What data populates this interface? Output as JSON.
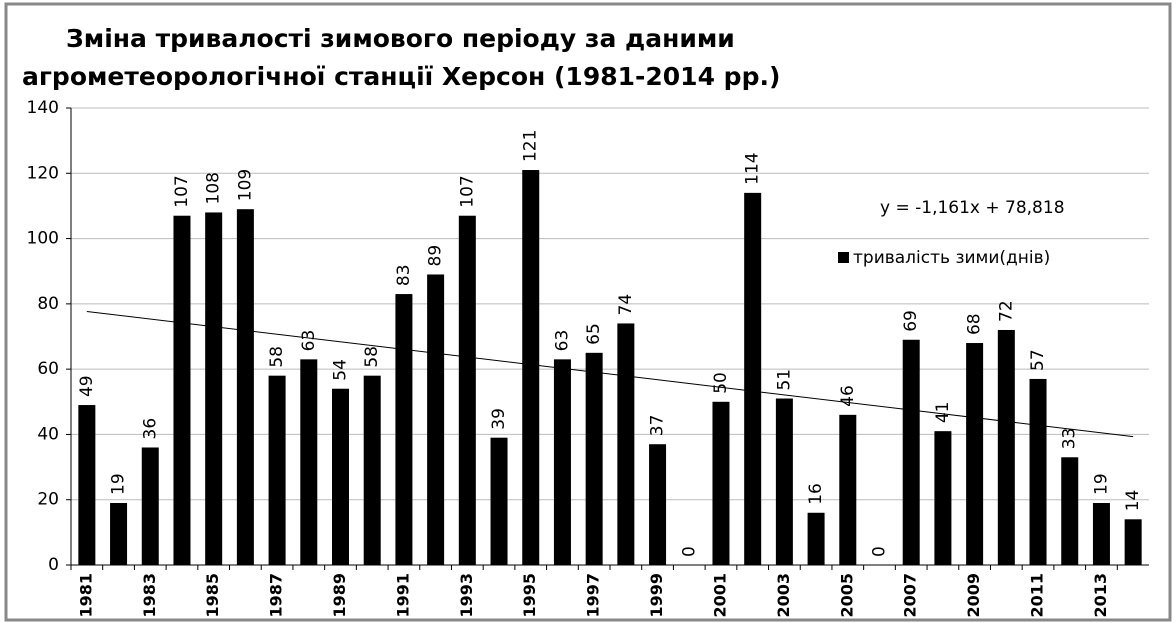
{
  "chart_data": {
    "type": "bar",
    "title": [
      "Зміна тривалості зимового періоду за даними",
      "агрометеорологічної станції Херсон (1981-2014 рр.)"
    ],
    "categories": [
      "1981",
      null,
      "1983",
      null,
      "1985",
      null,
      "1987",
      null,
      "1989",
      null,
      "1991",
      null,
      "1993",
      null,
      "1995",
      null,
      "1997",
      null,
      "1999",
      null,
      "2001",
      null,
      "2003",
      null,
      "2005",
      null,
      "2007",
      null,
      "2009",
      null,
      "2011",
      null,
      "2013",
      null
    ],
    "series": [
      {
        "name": "тривалість зими(днів)",
        "color": "#000000",
        "values": [
          49,
          19,
          36,
          107,
          108,
          109,
          58,
          63,
          54,
          58,
          83,
          89,
          107,
          39,
          121,
          63,
          65,
          74,
          37,
          0,
          50,
          114,
          51,
          16,
          46,
          0,
          69,
          41,
          68,
          72,
          57,
          33,
          19,
          14
        ]
      }
    ],
    "ylim": [
      0,
      140
    ],
    "yticks": [
      0,
      20,
      40,
      60,
      80,
      100,
      120,
      140
    ],
    "grid": true,
    "legend": "upper right",
    "trendline": {
      "slope": -1.161,
      "intercept": 78.818,
      "label": "y = -1,161x + 78,818"
    }
  }
}
